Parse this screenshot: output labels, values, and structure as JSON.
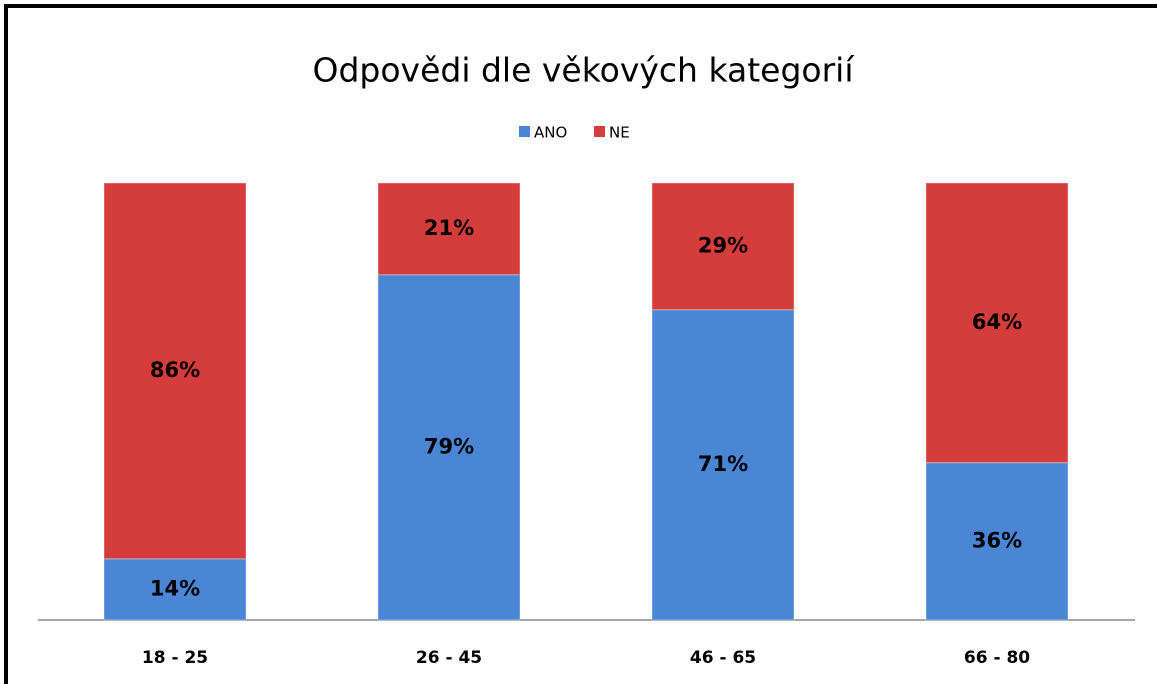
{
  "chart_data": {
    "type": "stacked_bar",
    "title": "Odpovědi dle věkových kategorií",
    "categories": [
      "18 - 25",
      "26 - 45",
      "46 - 65",
      "66 - 80"
    ],
    "series": [
      {
        "name": "ANO",
        "color": "#4a86d4",
        "values": [
          14,
          79,
          71,
          36
        ],
        "value_labels": [
          "14%",
          "79%",
          "71%",
          "36%"
        ]
      },
      {
        "name": "NE",
        "color": "#d43d3b",
        "values": [
          86,
          21,
          29,
          64
        ],
        "value_labels": [
          "86%",
          "21%",
          "29%",
          "64%"
        ]
      }
    ],
    "ylim": [
      0,
      100
    ],
    "legend": "top"
  }
}
